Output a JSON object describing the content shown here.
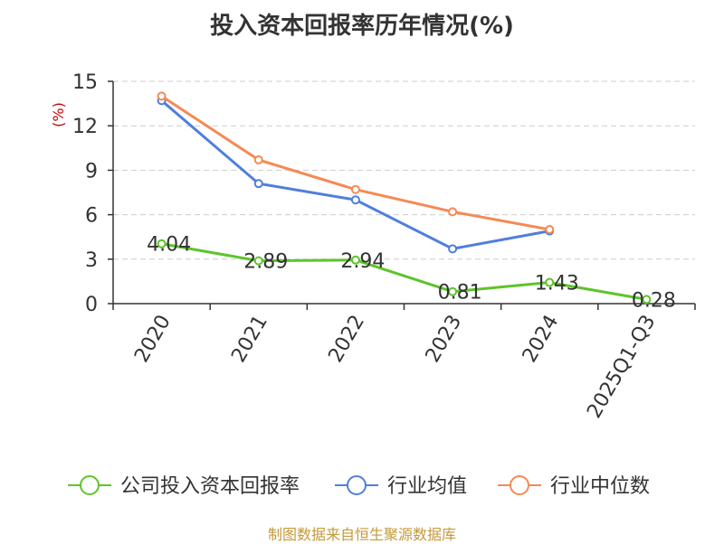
{
  "chart_data": {
    "type": "line",
    "title": "投入资本回报率历年情况(%)",
    "ylabel": "(%)",
    "xlabel": "",
    "categories": [
      "2020",
      "2021",
      "2022",
      "2023",
      "2024",
      "2025Q1-Q3"
    ],
    "ylim": [
      0,
      15
    ],
    "yticks": [
      0,
      3,
      6,
      9,
      12,
      15
    ],
    "grid": true,
    "legend_position": "bottom",
    "series": [
      {
        "name": "公司投入资本回报率",
        "color": "#5ec42a",
        "values": [
          4.04,
          2.89,
          2.94,
          0.81,
          1.43,
          0.28
        ],
        "labels": [
          "4.04",
          "2.89",
          "2.94",
          "0.81",
          "1.43",
          "0.28"
        ]
      },
      {
        "name": "行业均值",
        "color": "#4f7fdc",
        "values": [
          13.7,
          8.1,
          7.0,
          3.7,
          4.9,
          null
        ]
      },
      {
        "name": "行业中位数",
        "color": "#f58a55",
        "values": [
          14.0,
          9.7,
          7.7,
          6.2,
          5.0,
          null
        ]
      }
    ]
  },
  "source": {
    "text": "制图数据来自恒生聚源数据库",
    "color": "#c49a3a"
  },
  "colors": {
    "ylabel": "#cc0000",
    "axis": "#333333",
    "grid": "#cccccc",
    "text": "#333333"
  }
}
